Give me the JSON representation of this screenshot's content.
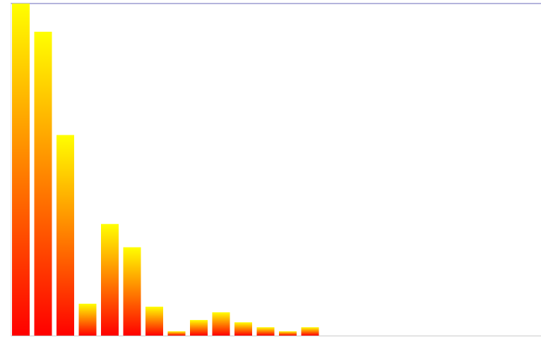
{
  "chart_data": {
    "type": "bar",
    "title": "",
    "xlabel": "",
    "ylabel": "",
    "ylim": [
      0,
      100
    ],
    "grid": false,
    "legend": "none",
    "values": [
      100,
      91.5,
      60.4,
      9.6,
      33.6,
      26.6,
      8.7,
      1.3,
      4.7,
      7.0,
      4.0,
      2.5,
      1.3,
      2.5
    ],
    "gradient": {
      "top": "#ffff00",
      "bottom": "#ff0000"
    },
    "colors": {
      "top_line": "#6a6ab8",
      "axis": "#cccccc",
      "background": "#ffffff"
    }
  }
}
